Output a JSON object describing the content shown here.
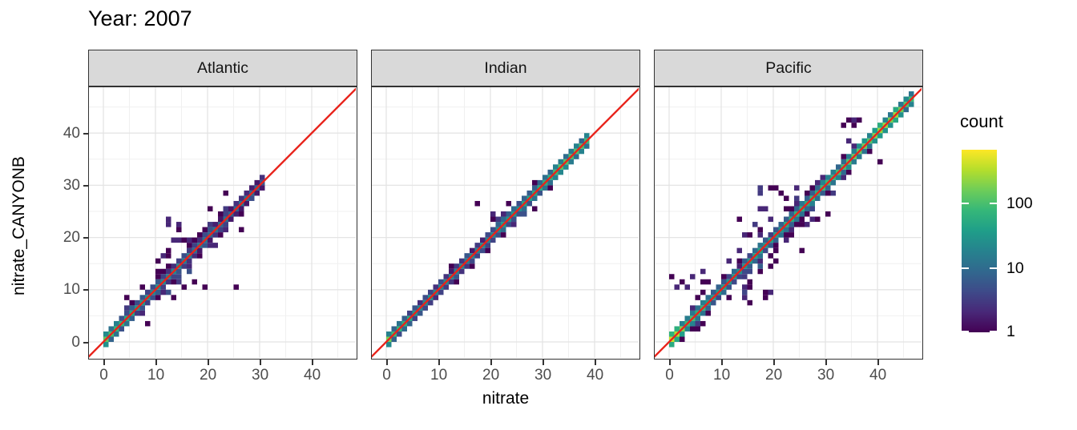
{
  "title": "Year: 2007",
  "chart_data": {
    "type": "bin2d",
    "title": "Year: 2007",
    "xlabel": "nitrate",
    "ylabel": "nitrate_CANYONB",
    "facet_labels": [
      "Atlantic",
      "Indian",
      "Pacific"
    ],
    "x_ticks": [
      "0",
      "10",
      "20",
      "30",
      "40"
    ],
    "y_ticks": [
      "0",
      "10",
      "20",
      "30",
      "40"
    ],
    "x_tick_values": [
      0,
      10,
      20,
      30,
      40
    ],
    "y_tick_values": [
      0,
      10,
      20,
      30,
      40
    ],
    "minor_tick_values": [
      5,
      15,
      25,
      35,
      45
    ],
    "x_range": [
      -2.8,
      48.8
    ],
    "y_range": [
      -3.1,
      48.8
    ],
    "bin_width": 1,
    "grid": true,
    "panel_background": "#ffffff",
    "grid_major_color": "#e4e4e4",
    "grid_minor_color": "#f0f0f0",
    "panel_border_color": "#333333",
    "strip_fill": "#d9d9d9",
    "identity_line": {
      "slope": 1,
      "intercept": 0,
      "color": "#e8231b",
      "width": 2.4
    },
    "color_scale": {
      "palette": "viridis",
      "trans": "log10",
      "limits": [
        1,
        650
      ],
      "legend_title": "count",
      "legend_tick_counts": [
        100,
        10,
        1
      ],
      "legend_tick_labels": [
        "100",
        "10",
        "1"
      ]
    },
    "facets": [
      {
        "label": "Atlantic",
        "seed": 11,
        "diag_range": [
          0,
          30
        ],
        "core_counts": [
          [
            0,
            130
          ],
          [
            2,
            85
          ],
          [
            5,
            40
          ],
          [
            8,
            28
          ],
          [
            12,
            20
          ],
          [
            16,
            15
          ],
          [
            20,
            12
          ],
          [
            24,
            10
          ],
          [
            27,
            9
          ],
          [
            30,
            7
          ]
        ],
        "spread": [
          [
            0,
            0.7
          ],
          [
            4,
            1.1
          ],
          [
            8,
            1.7
          ],
          [
            12,
            2.1
          ],
          [
            16,
            2.2
          ],
          [
            20,
            2.0
          ],
          [
            24,
            1.5
          ],
          [
            27,
            1.0
          ],
          [
            30,
            0.6
          ]
        ],
        "clusters": [
          [
            15,
            21.5,
            6,
            4,
            6
          ],
          [
            17,
            12,
            6,
            3,
            4
          ]
        ],
        "outliers": [
          [
            25.1,
            10.9
          ],
          [
            12.4,
            22.6
          ],
          [
            14.2,
            21.2
          ],
          [
            8.6,
            3.4
          ],
          [
            20.3,
            25.8
          ],
          [
            23.6,
            28.2
          ],
          [
            26.2,
            21.6
          ],
          [
            4.5,
            8.5
          ]
        ]
      },
      {
        "label": "Indian",
        "seed": 22,
        "diag_range": [
          0,
          38
        ],
        "core_counts": [
          [
            0,
            160
          ],
          [
            2,
            60
          ],
          [
            6,
            25
          ],
          [
            10,
            20
          ],
          [
            14,
            18
          ],
          [
            18,
            22
          ],
          [
            22,
            28
          ],
          [
            26,
            35
          ],
          [
            30,
            55
          ],
          [
            33,
            90
          ],
          [
            36,
            110
          ],
          [
            38,
            70
          ]
        ],
        "spread": [
          [
            0,
            0.5
          ],
          [
            6,
            0.6
          ],
          [
            12,
            0.8
          ],
          [
            18,
            1.1
          ],
          [
            22,
            1.4
          ],
          [
            26,
            1.0
          ],
          [
            30,
            0.8
          ],
          [
            34,
            0.7
          ],
          [
            38,
            0.5
          ]
        ],
        "clusters": [
          [
            21,
            23.5,
            5,
            3.5,
            8
          ]
        ],
        "outliers": [
          [
            17.5,
            26.6
          ],
          [
            23.4,
            26.8
          ],
          [
            28.9,
            25.4
          ],
          [
            12.1,
            14.9
          ]
        ]
      },
      {
        "label": "Pacific",
        "seed": 33,
        "diag_range": [
          0,
          46
        ],
        "core_counts": [
          [
            0,
            380
          ],
          [
            1,
            260
          ],
          [
            3,
            110
          ],
          [
            6,
            55
          ],
          [
            10,
            38
          ],
          [
            15,
            32
          ],
          [
            20,
            38
          ],
          [
            25,
            55
          ],
          [
            30,
            75
          ],
          [
            35,
            110
          ],
          [
            40,
            180
          ],
          [
            43,
            200
          ],
          [
            45,
            150
          ],
          [
            46,
            80
          ]
        ],
        "spread": [
          [
            0,
            0.8
          ],
          [
            5,
            1.6
          ],
          [
            10,
            2.3
          ],
          [
            15,
            2.5
          ],
          [
            20,
            2.5
          ],
          [
            25,
            2.3
          ],
          [
            30,
            1.9
          ],
          [
            35,
            1.5
          ],
          [
            40,
            1.2
          ],
          [
            44,
            0.9
          ],
          [
            46,
            0.7
          ]
        ],
        "clusters": [
          [
            4,
            11.8,
            6,
            3,
            6
          ],
          [
            21.5,
            27.5,
            9,
            5,
            10
          ],
          [
            16,
            8.5,
            8,
            4,
            5
          ],
          [
            35,
            42,
            4,
            2,
            3
          ]
        ],
        "outliers": [
          [
            0.8,
            12.5
          ],
          [
            17,
            28.4
          ],
          [
            19.8,
            29.2
          ],
          [
            34.3,
            42.0
          ],
          [
            36.2,
            42.3
          ],
          [
            18.4,
            9.1
          ],
          [
            25.6,
            17.4
          ],
          [
            13.6,
            23.1
          ],
          [
            30.2,
            24.0
          ],
          [
            40.1,
            34.6
          ],
          [
            44.8,
            44.2
          ]
        ]
      }
    ]
  }
}
